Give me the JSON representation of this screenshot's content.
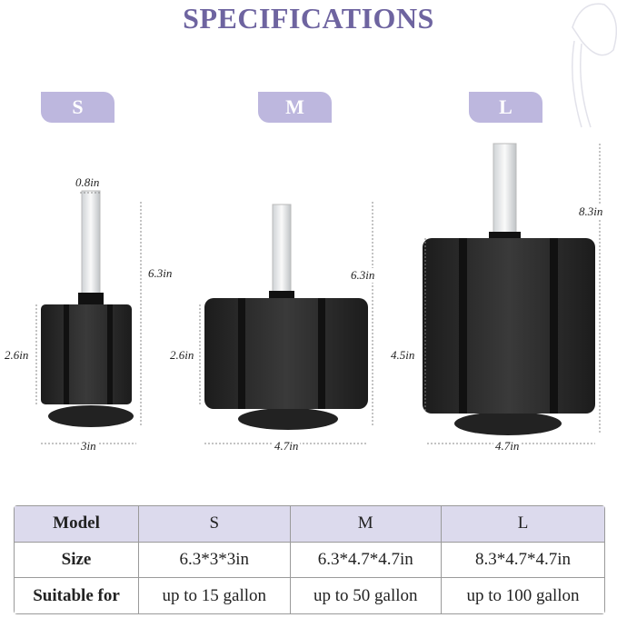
{
  "title": "SPECIFICATIONS",
  "accent_color": "#6e64a0",
  "tag_color": "#bdb7de",
  "models": [
    {
      "tag": "S",
      "height": "6.3in",
      "sponge_height": "2.6in",
      "width": "3in",
      "tube": "0.8in"
    },
    {
      "tag": "M",
      "height": "6.3in",
      "sponge_height": "2.6in",
      "width": "4.7in"
    },
    {
      "tag": "L",
      "height": "8.3in",
      "sponge_height": "4.5in",
      "width": "4.7in"
    }
  ],
  "table": {
    "header": [
      "Model",
      "S",
      "M",
      "L"
    ],
    "rows": [
      [
        "Size",
        "6.3*3*3in",
        "6.3*4.7*4.7in",
        "8.3*4.7*4.7in"
      ],
      [
        "Suitable for",
        "up to 15 gallon",
        "up to 50 gallon",
        "up to 100 gallon"
      ]
    ]
  }
}
